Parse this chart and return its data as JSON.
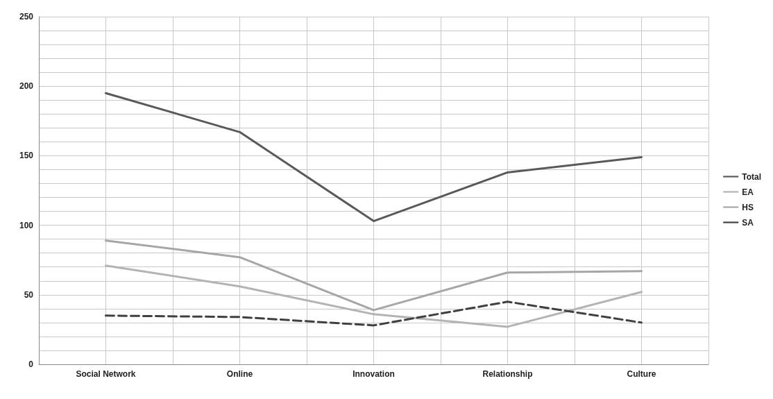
{
  "chart_data": {
    "type": "line",
    "categories": [
      "Social Network",
      "Online",
      "Innovation",
      "Relationship",
      "Culture"
    ],
    "series": [
      {
        "name": "Total",
        "color": "#595959",
        "values": [
          195,
          167,
          103,
          138,
          149
        ],
        "line_style": "solid"
      },
      {
        "name": "EA",
        "color": "#b3b3b3",
        "values": [
          71,
          56,
          36,
          27,
          52
        ],
        "line_style": "solid"
      },
      {
        "name": "HS",
        "color": "#a6a6a6",
        "values": [
          89,
          77,
          39,
          66,
          67
        ],
        "line_style": "solid"
      },
      {
        "name": "SA",
        "color": "#3f3f3f",
        "values": [
          35,
          34,
          28,
          45,
          30
        ],
        "line_style": "dashed"
      }
    ],
    "ylim": [
      0,
      250
    ],
    "yticks": [
      0,
      {
        "value": 10,
        "label": null
      },
      {
        "value": 20,
        "label": null
      },
      {
        "value": 30,
        "label": null
      },
      {
        "value": 40,
        "label": null
      },
      50,
      {
        "value": 60,
        "label": null
      },
      {
        "value": 70,
        "label": null
      },
      {
        "value": 80,
        "label": null
      },
      {
        "value": 90,
        "label": null
      },
      100,
      {
        "value": 110,
        "label": null
      },
      {
        "value": 120,
        "label": null
      },
      {
        "value": 130,
        "label": null
      },
      {
        "value": 140,
        "label": null
      },
      150,
      {
        "value": 160,
        "label": null
      },
      {
        "value": 170,
        "label": null
      },
      {
        "value": 180,
        "label": null
      },
      {
        "value": 190,
        "label": null
      },
      200,
      {
        "value": 210,
        "label": null
      },
      {
        "value": 220,
        "label": null
      },
      {
        "value": 230,
        "label": null
      },
      {
        "value": 240,
        "label": null
      },
      250
    ],
    "grid": true,
    "legend": "right",
    "marker": "none"
  }
}
